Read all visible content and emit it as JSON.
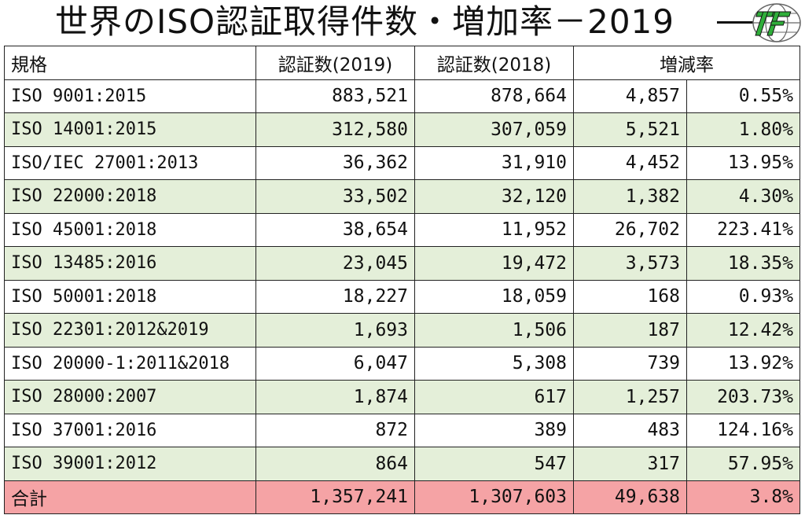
{
  "title": "世界のISO認証取得件数・増加率－2019",
  "logo_text": "TF",
  "header": {
    "standard": "規格",
    "count_2019": "認証数(2019)",
    "count_2018": "認証数(2018)",
    "change": "増減率"
  },
  "rows": [
    {
      "standard": "ISO 9001:2015",
      "count_2019": "883,521",
      "count_2018": "878,664",
      "diff": "4,857",
      "rate": "0.55%"
    },
    {
      "standard": "ISO 14001:2015",
      "count_2019": "312,580",
      "count_2018": "307,059",
      "diff": "5,521",
      "rate": "1.80%"
    },
    {
      "standard": "ISO/IEC 27001:2013",
      "count_2019": "36,362",
      "count_2018": "31,910",
      "diff": "4,452",
      "rate": "13.95%"
    },
    {
      "standard": "ISO 22000:2018",
      "count_2019": "33,502",
      "count_2018": "32,120",
      "diff": "1,382",
      "rate": "4.30%"
    },
    {
      "standard": "ISO 45001:2018",
      "count_2019": "38,654",
      "count_2018": "11,952",
      "diff": "26,702",
      "rate": "223.41%"
    },
    {
      "standard": "ISO 13485:2016",
      "count_2019": "23,045",
      "count_2018": "19,472",
      "diff": "3,573",
      "rate": "18.35%"
    },
    {
      "standard": "ISO 50001:2018",
      "count_2019": "18,227",
      "count_2018": "18,059",
      "diff": "168",
      "rate": "0.93%"
    },
    {
      "standard": "ISO 22301:2012&2019",
      "count_2019": "1,693",
      "count_2018": "1,506",
      "diff": "187",
      "rate": "12.42%"
    },
    {
      "standard": "ISO 20000-1:2011&2018",
      "count_2019": "6,047",
      "count_2018": "5,308",
      "diff": "739",
      "rate": "13.92%"
    },
    {
      "standard": "ISO 28000:2007",
      "count_2019": "1,874",
      "count_2018": "617",
      "diff": "1,257",
      "rate": "203.73%"
    },
    {
      "standard": "ISO 37001:2016",
      "count_2019": "872",
      "count_2018": "389",
      "diff": "483",
      "rate": "124.16%"
    },
    {
      "standard": "ISO 39001:2012",
      "count_2019": "864",
      "count_2018": "547",
      "diff": "317",
      "rate": "57.95%"
    }
  ],
  "total": {
    "standard": "合計",
    "count_2019": "1,357,241",
    "count_2018": "1,307,603",
    "diff": "49,638",
    "rate": "3.8%"
  },
  "colors": {
    "alt_row": "#e4efd9",
    "total_row": "#f5a3a5",
    "logo_green": "#2fae3a"
  }
}
